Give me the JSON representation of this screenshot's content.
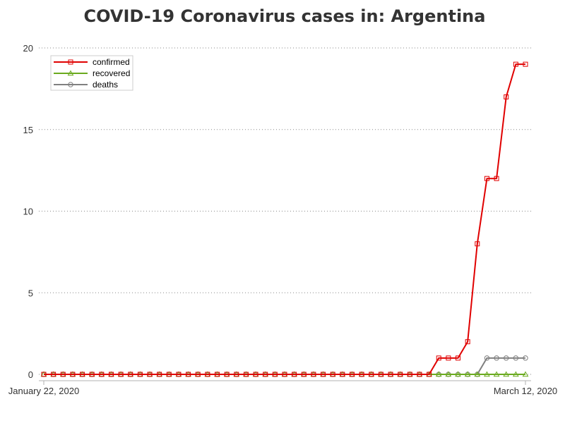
{
  "chart_data": {
    "type": "line",
    "title": "COVID-19 Coronavirus cases in: Argentina",
    "xlabel": "",
    "ylabel": "",
    "x_tick_labels": [
      "January 22, 2020",
      "March 12, 2020"
    ],
    "x": [
      "2020-01-22",
      "2020-01-23",
      "2020-01-24",
      "2020-01-25",
      "2020-01-26",
      "2020-01-27",
      "2020-01-28",
      "2020-01-29",
      "2020-01-30",
      "2020-01-31",
      "2020-02-01",
      "2020-02-02",
      "2020-02-03",
      "2020-02-04",
      "2020-02-05",
      "2020-02-06",
      "2020-02-07",
      "2020-02-08",
      "2020-02-09",
      "2020-02-10",
      "2020-02-11",
      "2020-02-12",
      "2020-02-13",
      "2020-02-14",
      "2020-02-15",
      "2020-02-16",
      "2020-02-17",
      "2020-02-18",
      "2020-02-19",
      "2020-02-20",
      "2020-02-21",
      "2020-02-22",
      "2020-02-23",
      "2020-02-24",
      "2020-02-25",
      "2020-02-26",
      "2020-02-27",
      "2020-02-28",
      "2020-02-29",
      "2020-03-01",
      "2020-03-02",
      "2020-03-03",
      "2020-03-04",
      "2020-03-05",
      "2020-03-06",
      "2020-03-07",
      "2020-03-08",
      "2020-03-09",
      "2020-03-10",
      "2020-03-11",
      "2020-03-12"
    ],
    "series": [
      {
        "name": "confirmed",
        "color": "#e00000",
        "marker": "square",
        "values": [
          0,
          0,
          0,
          0,
          0,
          0,
          0,
          0,
          0,
          0,
          0,
          0,
          0,
          0,
          0,
          0,
          0,
          0,
          0,
          0,
          0,
          0,
          0,
          0,
          0,
          0,
          0,
          0,
          0,
          0,
          0,
          0,
          0,
          0,
          0,
          0,
          0,
          0,
          0,
          0,
          0,
          1,
          1,
          1,
          2,
          8,
          12,
          12,
          17,
          19,
          19
        ]
      },
      {
        "name": "recovered",
        "color": "#6aaa1e",
        "marker": "triangle",
        "values": [
          0,
          0,
          0,
          0,
          0,
          0,
          0,
          0,
          0,
          0,
          0,
          0,
          0,
          0,
          0,
          0,
          0,
          0,
          0,
          0,
          0,
          0,
          0,
          0,
          0,
          0,
          0,
          0,
          0,
          0,
          0,
          0,
          0,
          0,
          0,
          0,
          0,
          0,
          0,
          0,
          0,
          0,
          0,
          0,
          0,
          0,
          0,
          0,
          0,
          0,
          0
        ]
      },
      {
        "name": "deaths",
        "color": "#808080",
        "marker": "circle",
        "values": [
          0,
          0,
          0,
          0,
          0,
          0,
          0,
          0,
          0,
          0,
          0,
          0,
          0,
          0,
          0,
          0,
          0,
          0,
          0,
          0,
          0,
          0,
          0,
          0,
          0,
          0,
          0,
          0,
          0,
          0,
          0,
          0,
          0,
          0,
          0,
          0,
          0,
          0,
          0,
          0,
          0,
          0,
          0,
          0,
          0,
          0,
          1,
          1,
          1,
          1,
          1
        ]
      }
    ],
    "ylim": [
      0,
      20
    ],
    "y_ticks": [
      0,
      5,
      10,
      15,
      20
    ],
    "grid": "horizontal dotted",
    "legend_position": "top-left"
  }
}
